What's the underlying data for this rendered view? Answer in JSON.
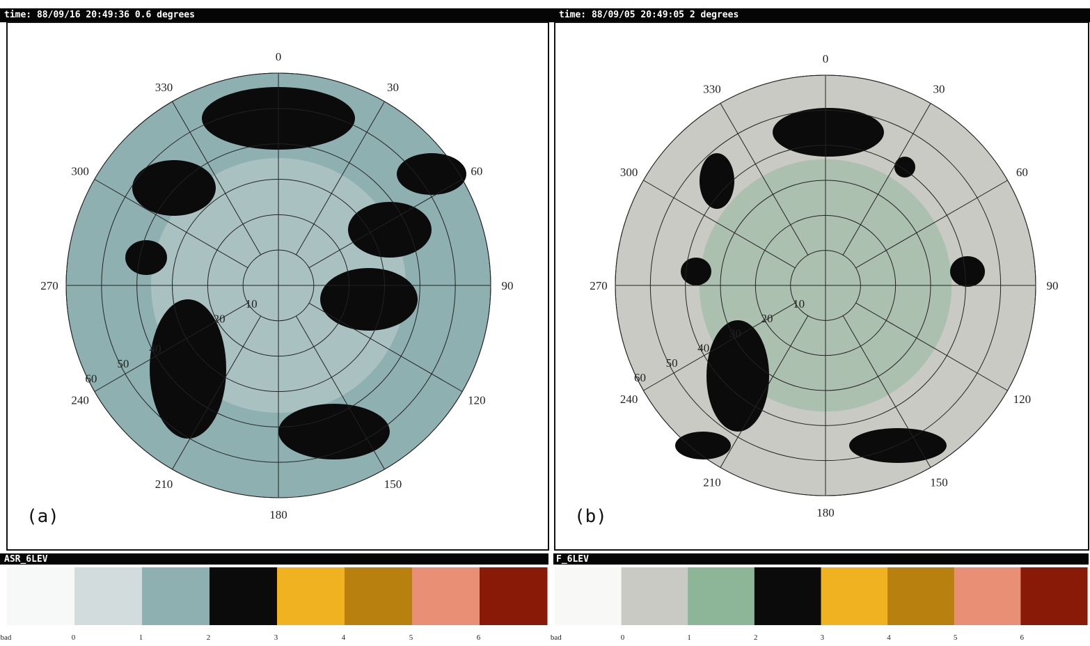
{
  "panels": [
    {
      "header": "time: 88/09/16 20:49:36 0.6 degrees",
      "label": "(a)",
      "azimuths": [
        "0",
        "30",
        "60",
        "90",
        "120",
        "150",
        "180",
        "210",
        "240",
        "270",
        "300",
        "330"
      ],
      "ranges": [
        "10",
        "20",
        "40",
        "50",
        "60"
      ],
      "colorbar": {
        "title": "ASR_6LEV",
        "labels": [
          "bad",
          "0",
          "1",
          "2",
          "3",
          "4",
          "5",
          "6"
        ],
        "colors": [
          "#f7f8f8",
          "#d3dcdc",
          "#8fb0b0",
          "#0b0b0b",
          "#f1b222",
          "#b8810f",
          "#e98f76",
          "#8a1a08"
        ]
      }
    },
    {
      "header": "time: 88/09/05 20:49:05 2 degrees",
      "label": "(b)",
      "azimuths": [
        "0",
        "30",
        "60",
        "90",
        "120",
        "150",
        "180",
        "210",
        "240",
        "270",
        "300",
        "330"
      ],
      "ranges": [
        "10",
        "20",
        "30",
        "40",
        "50",
        "60"
      ],
      "colorbar": {
        "title": "F_6LEV",
        "labels": [
          "bad",
          "0",
          "1",
          "2",
          "3",
          "4",
          "5",
          "6"
        ],
        "colors": [
          "#f8f8f6",
          "#c9cac4",
          "#8db598",
          "#0b0b0b",
          "#f1b222",
          "#b8810f",
          "#e98f76",
          "#8a1a08"
        ]
      }
    }
  ]
}
